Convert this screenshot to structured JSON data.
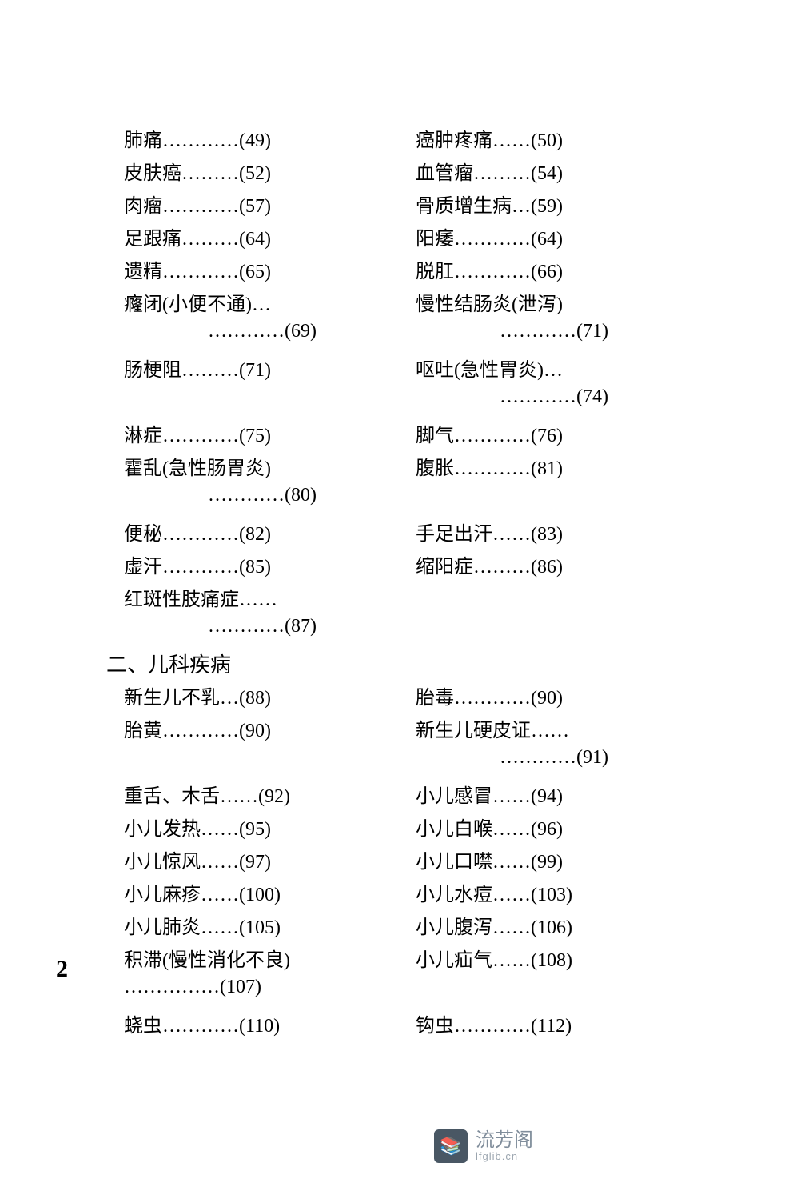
{
  "page_number": "2",
  "watermark": {
    "cn": "流芳阁",
    "en": "lfglib.cn",
    "icon": "📚"
  },
  "section_header": "二、儿科疾病",
  "styling": {
    "background_color": "#ffffff",
    "text_color": "#000000",
    "font_family": "SimSun",
    "font_size_body": 24,
    "font_size_section": 26,
    "line_height": 41,
    "watermark_cn_color": "#6a7a8a",
    "watermark_en_color": "#8a96a2",
    "watermark_icon_bg": "#2a3a4a"
  },
  "left": [
    {
      "label": "肺痛",
      "dots": " …………",
      "page": " (49)"
    },
    {
      "label": "皮肤癌",
      "dots": " ………",
      "page": " (52)"
    },
    {
      "label": "肉瘤",
      "dots": " …………",
      "page": " (57)"
    },
    {
      "label": "足跟痛",
      "dots": " ………",
      "page": " (64)"
    },
    {
      "label": "遗精",
      "dots": " …………",
      "page": " (65)"
    },
    {
      "label": "癃闭(小便不通)",
      "dots": " …",
      "page": ""
    },
    {
      "label": "",
      "dots": "…………",
      "page": " (69)",
      "indent": true
    },
    {
      "label": "肠梗阻",
      "dots": " ………",
      "page": " (71)"
    },
    {
      "type": "spacer"
    },
    {
      "label": "淋症",
      "dots": " …………",
      "page": " (75)"
    },
    {
      "label": "霍乱(急性肠胃炎)",
      "dots": "",
      "page": ""
    },
    {
      "label": "",
      "dots": "…………",
      "page": " (80)",
      "indent": true
    },
    {
      "label": "便秘",
      "dots": " …………",
      "page": " (82)"
    },
    {
      "label": "虚汗",
      "dots": " …………",
      "page": " (85)"
    },
    {
      "label": "红斑性肢痛症",
      "dots": " ……",
      "page": ""
    },
    {
      "label": "",
      "dots": "…………",
      "page": " (87)",
      "indent": true
    },
    {
      "type": "section"
    },
    {
      "label": "新生儿不乳",
      "dots": " …",
      "page": " (88)"
    },
    {
      "label": "胎黄",
      "dots": " …………",
      "page": " (90)"
    },
    {
      "type": "spacer"
    },
    {
      "label": "重舌、木舌",
      "dots": "……",
      "page": " (92)"
    },
    {
      "label": "小儿发热",
      "dots": " ……",
      "page": " (95)"
    },
    {
      "label": "小儿惊风",
      "dots": " ……",
      "page": " (97)"
    },
    {
      "label": "小儿麻疹",
      "dots": "……",
      "page": " (100)"
    },
    {
      "label": "小儿肺炎",
      "dots": "……",
      "page": " (105)"
    },
    {
      "label": "积滞(慢性消化不良)",
      "dots": "",
      "page": ""
    },
    {
      "label": "",
      "dots": "……………",
      "page": " (107)",
      "indent2": true
    },
    {
      "label": "蛲虫",
      "dots": "…………",
      "page": " (110)"
    }
  ],
  "right": [
    {
      "label": "癌肿疼痛",
      "dots": " ……",
      "page": " (50)"
    },
    {
      "label": "血管瘤",
      "dots": " ………",
      "page": " (54)"
    },
    {
      "label": "骨质增生病",
      "dots": " …",
      "page": " (59)"
    },
    {
      "label": "阳痿",
      "dots": " …………",
      "page": " (64)"
    },
    {
      "label": "脱肛",
      "dots": " …………",
      "page": " (66)"
    },
    {
      "label": "慢性结肠炎(泄泻)",
      "dots": "",
      "page": ""
    },
    {
      "label": "",
      "dots": "…………",
      "page": " (71)",
      "indent": true
    },
    {
      "label": "呕吐(急性胃炎)",
      "dots": " …",
      "page": ""
    },
    {
      "label": "",
      "dots": "…………",
      "page": " (74)",
      "indent": true
    },
    {
      "label": "脚气",
      "dots": " …………",
      "page": " (76)"
    },
    {
      "label": "腹胀",
      "dots": " …………",
      "page": " (81)"
    },
    {
      "type": "spacer"
    },
    {
      "label": "手足出汗",
      "dots": " ……",
      "page": " (83)"
    },
    {
      "label": "缩阳症",
      "dots": " ………",
      "page": " (86)"
    },
    {
      "type": "spacer"
    },
    {
      "type": "spacer"
    },
    {
      "type": "spacer"
    },
    {
      "label": "胎毒",
      "dots": " …………",
      "page": " (90)"
    },
    {
      "label": "新生儿硬皮证",
      "dots": " ……",
      "page": ""
    },
    {
      "label": "",
      "dots": "…………",
      "page": " (91)",
      "indent": true
    },
    {
      "label": "小儿感冒",
      "dots": " ……",
      "page": " (94)"
    },
    {
      "label": "小儿白喉",
      "dots": " ……",
      "page": " (96)"
    },
    {
      "label": "小儿口噤",
      "dots": " ……",
      "page": " (99)"
    },
    {
      "label": "小儿水痘",
      "dots": "……",
      "page": " (103)"
    },
    {
      "label": "小儿腹泻",
      "dots": "……",
      "page": " (106)"
    },
    {
      "label": "小儿疝气",
      "dots": "……",
      "page": " (108)"
    },
    {
      "type": "spacer"
    },
    {
      "label": "钩虫",
      "dots": "…………",
      "page": " (112)"
    }
  ]
}
